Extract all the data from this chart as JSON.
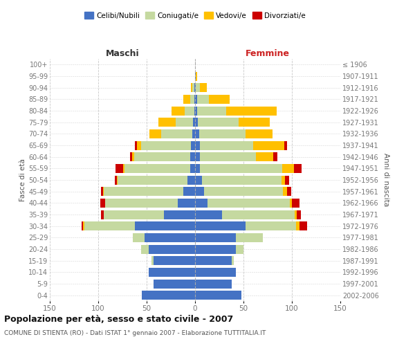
{
  "age_groups": [
    "0-4",
    "5-9",
    "10-14",
    "15-19",
    "20-24",
    "25-29",
    "30-34",
    "35-39",
    "40-44",
    "45-49",
    "50-54",
    "55-59",
    "60-64",
    "65-69",
    "70-74",
    "75-79",
    "80-84",
    "85-89",
    "90-94",
    "95-99",
    "100+"
  ],
  "birth_years": [
    "2002-2006",
    "1997-2001",
    "1992-1996",
    "1987-1991",
    "1982-1986",
    "1977-1981",
    "1972-1976",
    "1967-1971",
    "1962-1966",
    "1957-1961",
    "1952-1956",
    "1947-1951",
    "1942-1946",
    "1937-1941",
    "1932-1936",
    "1927-1931",
    "1922-1926",
    "1917-1921",
    "1912-1916",
    "1907-1911",
    "≤ 1906"
  ],
  "males_celibi": [
    55,
    43,
    48,
    43,
    48,
    52,
    62,
    32,
    18,
    12,
    8,
    5,
    5,
    4,
    3,
    2,
    1,
    1,
    1,
    0,
    0
  ],
  "males_coniugati": [
    0,
    0,
    0,
    2,
    8,
    12,
    52,
    62,
    75,
    82,
    72,
    68,
    58,
    52,
    32,
    18,
    10,
    4,
    2,
    0,
    0
  ],
  "males_vedovi": [
    0,
    0,
    0,
    0,
    0,
    0,
    2,
    0,
    0,
    1,
    1,
    1,
    2,
    4,
    12,
    18,
    13,
    7,
    1,
    0,
    0
  ],
  "males_divorziati": [
    0,
    0,
    0,
    0,
    0,
    0,
    1,
    3,
    5,
    2,
    2,
    8,
    2,
    2,
    0,
    0,
    0,
    0,
    0,
    0,
    0
  ],
  "females_nubili": [
    48,
    38,
    42,
    38,
    42,
    42,
    52,
    28,
    13,
    9,
    7,
    5,
    5,
    5,
    4,
    3,
    2,
    2,
    1,
    1,
    0
  ],
  "females_coniugate": [
    0,
    0,
    0,
    2,
    8,
    28,
    52,
    75,
    85,
    82,
    82,
    85,
    58,
    55,
    48,
    42,
    30,
    12,
    4,
    0,
    0
  ],
  "females_vedove": [
    0,
    0,
    0,
    0,
    0,
    0,
    4,
    2,
    2,
    4,
    4,
    12,
    18,
    32,
    28,
    32,
    52,
    22,
    7,
    1,
    0
  ],
  "females_divorziate": [
    0,
    0,
    0,
    0,
    0,
    0,
    8,
    4,
    8,
    4,
    4,
    8,
    4,
    3,
    0,
    0,
    0,
    0,
    0,
    0,
    0
  ],
  "colors_celibi": "#4472c4",
  "colors_coniugati": "#c5d9a0",
  "colors_vedovi": "#ffc000",
  "colors_divorziati": "#cc0000",
  "title": "Popolazione per età, sesso e stato civile - 2007",
  "subtitle": "COMUNE DI STIENTA (RO) - Dati ISTAT 1° gennaio 2007 - Elaborazione TUTTITALIA.IT",
  "label_maschi": "Maschi",
  "label_femmine": "Femmine",
  "ylabel_left": "Fasce di età",
  "ylabel_right": "Anni di nascita",
  "xlim": 150,
  "legend_labels": [
    "Celibi/Nubili",
    "Coniugati/e",
    "Vedovi/e",
    "Divorziati/e"
  ],
  "background_color": "#ffffff",
  "grid_color": "#bbbbbb"
}
